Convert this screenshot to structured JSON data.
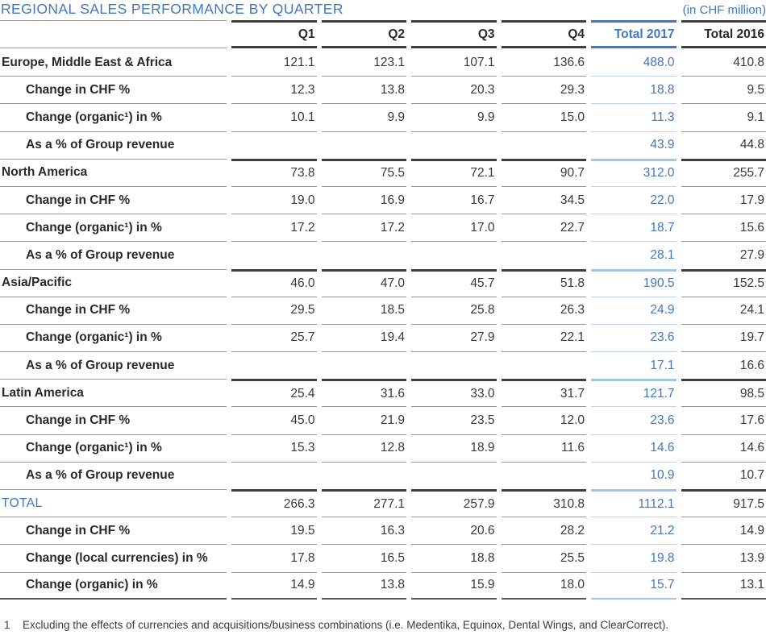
{
  "title": "REGIONAL SALES PERFORMANCE BY QUARTER",
  "unit_note": "(in CHF million)",
  "colors": {
    "accent_blue": "#4079BF",
    "light_blue_border": "#A3C4E2",
    "light_blue_separator": "#BDD3EC",
    "dark_border": "#3E3E40",
    "gray_separator": "#949496",
    "text_dark": "#2A2A2C"
  },
  "table": {
    "columns": [
      "Q1",
      "Q2",
      "Q3",
      "Q4",
      "Total 2017",
      "Total 2016"
    ],
    "highlight_column": "Total 2017",
    "rows": [
      {
        "type": "region",
        "label": "Europe, Middle East & Africa",
        "values": [
          "121.1",
          "123.1",
          "107.1",
          "136.6",
          "488.0",
          "410.8"
        ]
      },
      {
        "type": "sub",
        "label": "Change in CHF %",
        "values": [
          "12.3",
          "13.8",
          "20.3",
          "29.3",
          "18.8",
          "9.5"
        ]
      },
      {
        "type": "sub",
        "label": "Change (organic¹) in %",
        "values": [
          "10.1",
          "9.9",
          "9.9",
          "15.0",
          "11.3",
          "9.1"
        ]
      },
      {
        "type": "sub",
        "label": "As a % of Group revenue",
        "values": [
          "",
          "",
          "",
          "",
          "43.9",
          "44.8"
        ]
      },
      {
        "type": "region",
        "label": "North America",
        "values": [
          "73.8",
          "75.5",
          "72.1",
          "90.7",
          "312.0",
          "255.7"
        ]
      },
      {
        "type": "sub",
        "label": "Change in CHF %",
        "values": [
          "19.0",
          "16.9",
          "16.7",
          "34.5",
          "22.0",
          "17.9"
        ]
      },
      {
        "type": "sub",
        "label": "Change (organic¹) in %",
        "values": [
          "17.2",
          "17.2",
          "17.0",
          "22.7",
          "18.7",
          "15.6"
        ]
      },
      {
        "type": "sub",
        "label": "As a % of Group revenue",
        "values": [
          "",
          "",
          "",
          "",
          "28.1",
          "27.9"
        ]
      },
      {
        "type": "region",
        "label": "Asia/Pacific",
        "values": [
          "46.0",
          "47.0",
          "45.7",
          "51.8",
          "190.5",
          "152.5"
        ]
      },
      {
        "type": "sub",
        "label": "Change in CHF %",
        "values": [
          "29.5",
          "18.5",
          "25.8",
          "26.3",
          "24.9",
          "24.1"
        ]
      },
      {
        "type": "sub",
        "label": "Change (organic¹) in %",
        "values": [
          "25.7",
          "19.4",
          "27.9",
          "22.1",
          "23.6",
          "19.7"
        ]
      },
      {
        "type": "sub",
        "label": "As a % of Group revenue",
        "values": [
          "",
          "",
          "",
          "",
          "17.1",
          "16.6"
        ]
      },
      {
        "type": "region",
        "label": "Latin America",
        "values": [
          "25.4",
          "31.6",
          "33.0",
          "31.7",
          "121.7",
          "98.5"
        ]
      },
      {
        "type": "sub",
        "label": "Change in CHF %",
        "values": [
          "45.0",
          "21.9",
          "23.5",
          "12.0",
          "23.6",
          "17.6"
        ]
      },
      {
        "type": "sub",
        "label": "Change (organic¹) in %",
        "values": [
          "15.3",
          "12.8",
          "18.9",
          "11.6",
          "14.6",
          "14.6"
        ]
      },
      {
        "type": "sub",
        "label": "As a % of Group revenue",
        "values": [
          "",
          "",
          "",
          "",
          "10.9",
          "10.7"
        ]
      },
      {
        "type": "total",
        "label": "TOTAL",
        "values": [
          "266.3",
          "277.1",
          "257.9",
          "310.8",
          "1112.1",
          "917.5"
        ]
      },
      {
        "type": "sub",
        "label": "Change in CHF %",
        "values": [
          "19.5",
          "16.3",
          "20.6",
          "28.2",
          "21.2",
          "14.9"
        ]
      },
      {
        "type": "sub",
        "label": "Change (local currencies) in %",
        "values": [
          "17.8",
          "16.5",
          "18.8",
          "25.5",
          "19.8",
          "13.9"
        ]
      },
      {
        "type": "sub",
        "label": "Change (organic) in %",
        "values": [
          "14.9",
          "13.8",
          "15.9",
          "18.0",
          "15.7",
          "13.1"
        ]
      }
    ]
  },
  "footnote": {
    "marker": "1",
    "text": "Excluding the effects of currencies and acquisitions/business combinations (i.e. Medentika, Equinox, Dental Wings, and ClearCorrect)."
  }
}
